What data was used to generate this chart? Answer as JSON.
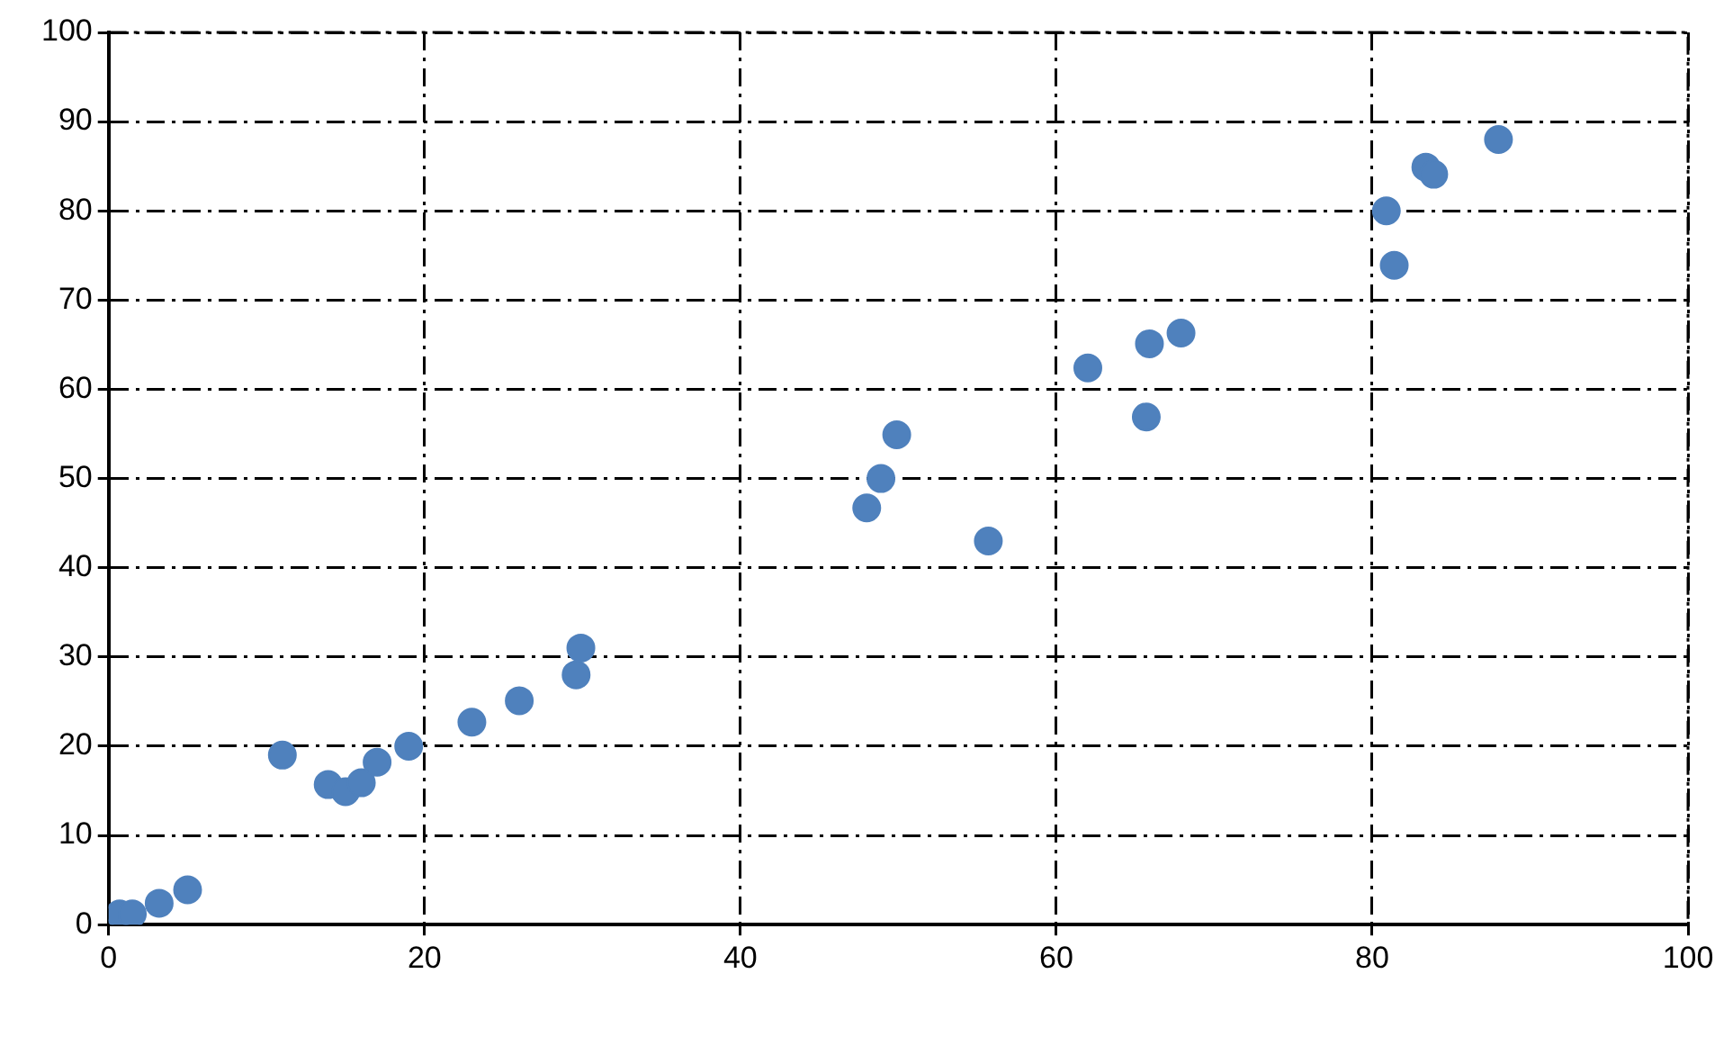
{
  "chart_data": {
    "type": "scatter",
    "color": "#4f81bd",
    "marker": "circle",
    "grid": true,
    "legend": false,
    "line_style": "dashed",
    "x": [
      0.7,
      1.5,
      3.2,
      5,
      11,
      13.9,
      15,
      16,
      17,
      19,
      23,
      26,
      29.6,
      29.9,
      48,
      48.9,
      49.9,
      55.7,
      62,
      65.7,
      65.9,
      67.9,
      80.9,
      81.4,
      83.4,
      83.9,
      88
    ],
    "values": [
      1.2,
      1.2,
      2.4,
      3.9,
      19,
      15.7,
      14.9,
      15.9,
      18.2,
      20,
      22.7,
      25.1,
      28,
      31,
      46.7,
      50,
      54.9,
      43,
      62.4,
      56.9,
      65.1,
      66.3,
      80,
      73.9,
      84.9,
      84.1,
      88
    ],
    "xlim": [
      0,
      100
    ],
    "xticks": [
      0,
      20,
      40,
      60,
      80,
      100
    ],
    "ylim": [
      0,
      100
    ],
    "yticks": [
      0,
      10,
      20,
      30,
      40,
      50,
      60,
      70,
      80,
      90,
      100
    ]
  }
}
